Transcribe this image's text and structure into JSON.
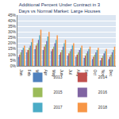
{
  "chart_data": {
    "type": "bar",
    "title": "Additional Percent Under Contract in 3 Days vs Normal Market: Large Houses",
    "categories": [
      "Jan",
      "Feb",
      "Mar",
      "Apr",
      "May",
      "Jun",
      "Jul",
      "Aug",
      "Sep",
      "Oct",
      "Nov",
      "Dec"
    ],
    "series": [
      {
        "name": "2013",
        "color": "#4f81bd",
        "values": [
          8,
          12,
          15,
          14,
          13,
          10,
          9,
          8,
          7,
          6,
          5,
          6
        ]
      },
      {
        "name": "2014",
        "color": "#c0504d",
        "values": [
          10,
          14,
          18,
          17,
          15,
          12,
          11,
          10,
          9,
          8,
          7,
          8
        ]
      },
      {
        "name": "2015",
        "color": "#9bbb59",
        "values": [
          12,
          16,
          20,
          19,
          17,
          14,
          13,
          12,
          11,
          10,
          9,
          10
        ]
      },
      {
        "name": "2016",
        "color": "#8064a2",
        "values": [
          14,
          18,
          23,
          22,
          20,
          17,
          15,
          14,
          13,
          12,
          11,
          12
        ]
      },
      {
        "name": "2017",
        "color": "#4bacc6",
        "values": [
          16,
          21,
          27,
          26,
          23,
          20,
          18,
          16,
          15,
          14,
          13,
          14
        ]
      },
      {
        "name": "2018",
        "color": "#f79646",
        "values": [
          18,
          24,
          32,
          30,
          27,
          23,
          20,
          18,
          17,
          16,
          15,
          17
        ]
      }
    ],
    "ylim": [
      0,
      45
    ],
    "yticks": [
      {
        "value": 0,
        "label": "0%"
      },
      {
        "value": 5,
        "label": "5%"
      },
      {
        "value": 10,
        "label": "10%"
      },
      {
        "value": 15,
        "label": "15%"
      },
      {
        "value": 20,
        "label": "20%"
      },
      {
        "value": 25,
        "label": "25%"
      },
      {
        "value": 30,
        "label": "30%"
      },
      {
        "value": 35,
        "label": "35%"
      },
      {
        "value": 40,
        "label": "40%"
      },
      {
        "value": 45,
        "label": "45%"
      }
    ],
    "grid": true,
    "legend": "bottom"
  }
}
